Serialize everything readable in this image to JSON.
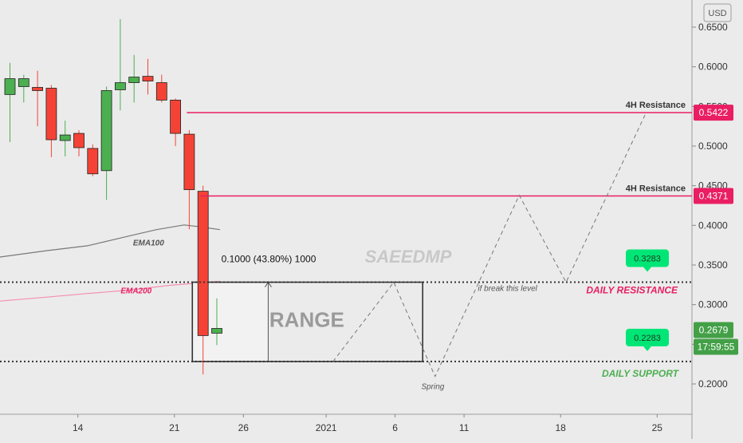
{
  "chart_data": {
    "type": "candlestick",
    "currency_label": "USD",
    "watermark": "SAEEDMP",
    "y_ticks": [
      0.65,
      0.6,
      0.55,
      0.5,
      0.45,
      0.4,
      0.35,
      0.3,
      0.25,
      0.2
    ],
    "y_tick_labels": [
      "0.6500",
      "0.6000",
      "0.5500",
      "0.5000",
      "0.4500",
      "0.4000",
      "0.3500",
      "0.3000",
      "0.2500",
      "0.2000"
    ],
    "ylim": [
      0.162,
      0.665
    ],
    "x_ticks": [
      {
        "label": "14",
        "bar": 5.3
      },
      {
        "label": "21",
        "bar": 12.3
      },
      {
        "label": "26",
        "bar": 17.3
      },
      {
        "label": "2021",
        "bar": 23.3
      },
      {
        "label": "6",
        "bar": 28.3
      },
      {
        "label": "11",
        "bar": 33.3
      },
      {
        "label": "18",
        "bar": 40.3
      },
      {
        "label": "25",
        "bar": 47.3
      }
    ],
    "candles": [
      {
        "o": 0.565,
        "h": 0.605,
        "l": 0.505,
        "c": 0.585
      },
      {
        "o": 0.575,
        "h": 0.59,
        "l": 0.555,
        "c": 0.585
      },
      {
        "o": 0.574,
        "h": 0.595,
        "l": 0.525,
        "c": 0.57
      },
      {
        "o": 0.573,
        "h": 0.577,
        "l": 0.486,
        "c": 0.508
      },
      {
        "o": 0.507,
        "h": 0.532,
        "l": 0.487,
        "c": 0.514
      },
      {
        "o": 0.516,
        "h": 0.52,
        "l": 0.487,
        "c": 0.498
      },
      {
        "o": 0.497,
        "h": 0.502,
        "l": 0.462,
        "c": 0.465
      },
      {
        "o": 0.469,
        "h": 0.575,
        "l": 0.432,
        "c": 0.57
      },
      {
        "o": 0.571,
        "h": 0.66,
        "l": 0.545,
        "c": 0.58
      },
      {
        "o": 0.58,
        "h": 0.615,
        "l": 0.555,
        "c": 0.587
      },
      {
        "o": 0.588,
        "h": 0.61,
        "l": 0.565,
        "c": 0.582
      },
      {
        "o": 0.58,
        "h": 0.59,
        "l": 0.555,
        "c": 0.558
      },
      {
        "o": 0.558,
        "h": 0.56,
        "l": 0.5,
        "c": 0.516
      },
      {
        "o": 0.515,
        "h": 0.52,
        "l": 0.395,
        "c": 0.445
      },
      {
        "o": 0.443,
        "h": 0.45,
        "l": 0.212,
        "c": 0.261
      },
      {
        "o": 0.264,
        "h": 0.308,
        "l": 0.249,
        "c": 0.27
      }
    ],
    "ema_lines": [
      {
        "name": "EMA100",
        "color": "#787878",
        "points": [
          [
            -0.5,
            0.3597
          ],
          [
            3.0,
            0.368
          ],
          [
            6.0,
            0.3743
          ],
          [
            9.0,
            0.3865
          ],
          [
            11.0,
            0.3946
          ],
          [
            13.0,
            0.4005
          ],
          [
            14.0,
            0.3985
          ],
          [
            15.6,
            0.3946
          ]
        ]
      },
      {
        "name": "EMA200",
        "color": "#f48fb1",
        "points": [
          [
            -0.5,
            0.3043
          ],
          [
            3.0,
            0.3094
          ],
          [
            6.0,
            0.3141
          ],
          [
            9.0,
            0.3183
          ],
          [
            12.0,
            0.3244
          ],
          [
            15.6,
            0.3294
          ]
        ]
      }
    ],
    "resistance_lines": [
      {
        "label": "4H Resistance",
        "value": 0.5422,
        "value_label": "0.5422",
        "from_bar": 13.2
      },
      {
        "label": "4H Resistance",
        "value": 0.4371,
        "value_label": "0.4371",
        "from_bar": 14.2
      }
    ],
    "daily_resistance": {
      "label": "DAILY RESISTANCE",
      "value": 0.3283,
      "value_label": "0.3283",
      "color": "#e91e63"
    },
    "daily_support": {
      "label": "DAILY SUPPORT",
      "value": 0.2283,
      "value_label": "0.2283",
      "color": "#4caf50"
    },
    "range_box": {
      "label": "RANGE",
      "top": 0.3283,
      "bottom": 0.2283,
      "from_bar": 13.6,
      "to_bar": 30.3
    },
    "measure": {
      "text": "0.1000 (43.80%) 1000",
      "bar": 19.1,
      "from": 0.2283,
      "to": 0.3283
    },
    "projection": [
      [
        23.8,
        0.2283
      ],
      [
        28.2,
        0.3283
      ],
      [
        31.2,
        0.2095
      ],
      [
        37.3,
        0.438
      ],
      [
        40.7,
        0.3283
      ],
      [
        46.5,
        0.5422
      ]
    ],
    "annotations": {
      "break": "if break this level",
      "spring": "Spring"
    },
    "current_price": {
      "value": 0.2679,
      "label": "0.2679",
      "countdown": "17:59:55"
    },
    "colors": {
      "up": "#4caf50",
      "down": "#f44336",
      "resistance": "#e91e63",
      "support": "#4caf50",
      "background": "#ebebeb"
    }
  }
}
